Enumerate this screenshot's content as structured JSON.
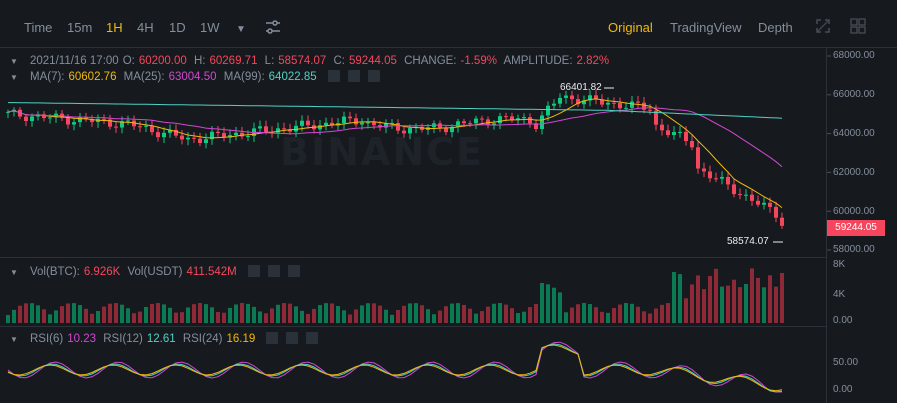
{
  "toolbar": {
    "intervals": [
      "Time",
      "15m",
      "1H",
      "4H",
      "1D",
      "1W"
    ],
    "active_interval": "1H",
    "views": [
      "Original",
      "TradingView",
      "Depth"
    ],
    "active_view": "Original"
  },
  "ohlc": {
    "date": "2021/11/16 17:00",
    "open_label": "O:",
    "open": "60200.00",
    "high_label": "H:",
    "high": "60269.71",
    "low_label": "L:",
    "low": "58574.07",
    "close_label": "C:",
    "close": "59244.05",
    "change_label": "CHANGE:",
    "change": "-1.59%",
    "amplitude_label": "AMPLITUDE:",
    "amplitude": "2.82%"
  },
  "ma": {
    "ma7_label": "MA(7):",
    "ma7": "60602.76",
    "ma25_label": "MA(25):",
    "ma25": "63004.50",
    "ma99_label": "MA(99):",
    "ma99": "64022.85"
  },
  "volume": {
    "btc_label": "Vol(BTC):",
    "btc": "6.926K",
    "usdt_label": "Vol(USDT)",
    "usdt": "411.542M"
  },
  "rsi": {
    "rsi6_label": "RSI(6)",
    "rsi6": "10.23",
    "rsi12_label": "RSI(12)",
    "rsi12": "12.61",
    "rsi24_label": "RSI(24)",
    "rsi24": "16.19"
  },
  "price_axis": [
    "68000.00",
    "66000.00",
    "64000.00",
    "62000.00",
    "60000.00",
    "58000.00"
  ],
  "volume_axis": [
    "8K",
    "4K",
    "0.00"
  ],
  "rsi_axis": [
    "50.00",
    "0.00"
  ],
  "current_price": "59244.05",
  "high_marker": "66401.82",
  "low_marker": "58574.07",
  "watermark": "BINANCE",
  "colors": {
    "up": "#0ecb81",
    "down": "#f6465d",
    "accent": "#f0b90b",
    "ma7": "#f0b90b",
    "ma25": "#d048d0",
    "ma99": "#4fd1c5"
  }
}
